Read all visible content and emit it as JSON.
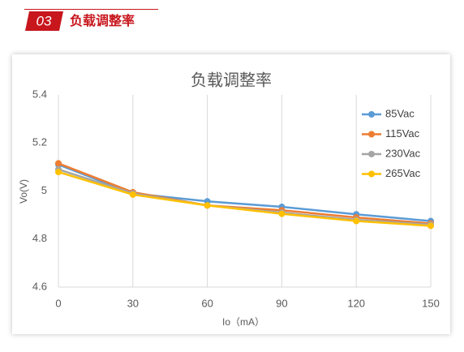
{
  "header": {
    "number": "03",
    "title": "负载调整率"
  },
  "chart_data": {
    "type": "line",
    "title": "负载调整率",
    "x_label": "Io（mA）",
    "y_label": "Vo(V)",
    "x": [
      0,
      30,
      60,
      90,
      120,
      150
    ],
    "series": [
      {
        "name": "85Vac",
        "color": "#5b9bd5",
        "values": [
          5.11,
          4.99,
          4.957,
          4.934,
          4.903,
          4.875
        ]
      },
      {
        "name": "115Vac",
        "color": "#ed7d31",
        "values": [
          5.115,
          4.995,
          4.94,
          4.92,
          4.89,
          4.865
        ]
      },
      {
        "name": "230Vac",
        "color": "#a5a5a5",
        "values": [
          5.09,
          4.99,
          4.94,
          4.91,
          4.88,
          4.86
        ]
      },
      {
        "name": "265Vac",
        "color": "#ffc000",
        "values": [
          5.079,
          4.985,
          4.94,
          4.905,
          4.875,
          4.855
        ]
      }
    ],
    "xlim": [
      0,
      150
    ],
    "xticks": [
      0,
      30,
      60,
      90,
      120,
      150
    ],
    "ylim": [
      4.6,
      5.4
    ],
    "yticks": [
      4.6,
      4.8,
      5,
      5.2,
      5.4
    ],
    "grid": "x",
    "legend": "upper right"
  }
}
